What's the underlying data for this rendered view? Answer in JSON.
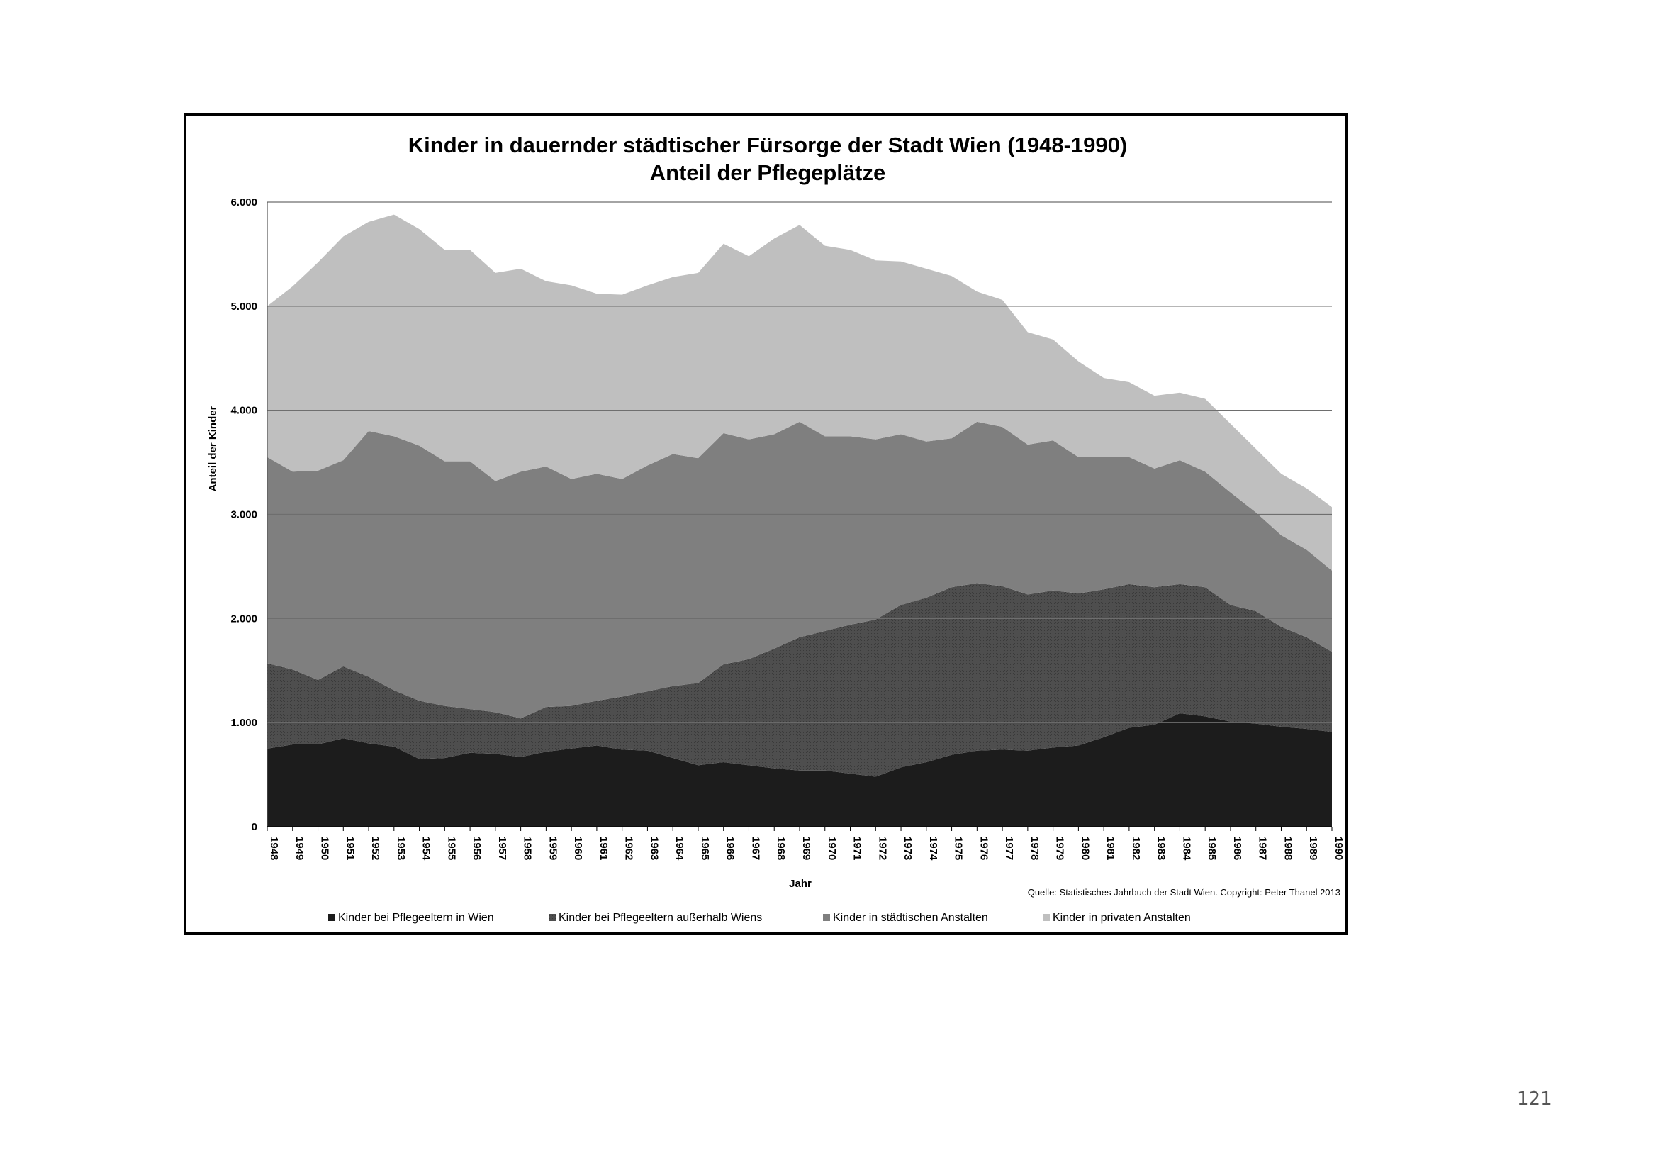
{
  "page_number": "121",
  "chart_data": {
    "type": "area",
    "stacked": true,
    "title": "Kinder in dauernder städtischer Fürsorge der Stadt Wien (1948-1990)",
    "subtitle": "Anteil der Pflegeplätze",
    "xlabel": "Jahr",
    "ylabel": "Anteil der Kinder",
    "source": "Quelle: Statistisches Jahrbuch der Stadt Wien. Copyright: Peter Thanel 2013",
    "ylim": [
      0,
      6000
    ],
    "yticks": [
      0,
      1000,
      2000,
      3000,
      4000,
      5000,
      6000
    ],
    "ytick_labels": [
      "0",
      "1.000",
      "2.000",
      "3.000",
      "4.000",
      "5.000",
      "6.000"
    ],
    "grid": true,
    "legend_position": "bottom",
    "categories": [
      "1948",
      "1949",
      "1950",
      "1951",
      "1952",
      "1953",
      "1954",
      "1955",
      "1956",
      "1957",
      "1958",
      "1959",
      "1960",
      "1961",
      "1962",
      "1963",
      "1964",
      "1965",
      "1966",
      "1967",
      "1968",
      "1969",
      "1970",
      "1971",
      "1972",
      "1973",
      "1974",
      "1975",
      "1976",
      "1977",
      "1978",
      "1979",
      "1980",
      "1981",
      "1982",
      "1983",
      "1984",
      "1985",
      "1986",
      "1987",
      "1988",
      "1989",
      "1990"
    ],
    "series": [
      {
        "name": "Kinder bei Pflegeeltern in Wien",
        "color": "#1c1c1c",
        "values": [
          750,
          790,
          790,
          850,
          800,
          770,
          650,
          660,
          710,
          700,
          670,
          720,
          750,
          780,
          740,
          730,
          660,
          590,
          620,
          590,
          560,
          540,
          540,
          510,
          480,
          570,
          620,
          690,
          730,
          740,
          730,
          760,
          780,
          860,
          950,
          980,
          1090,
          1060,
          1010,
          990,
          960,
          940,
          910
        ]
      },
      {
        "name": "Kinder bei Pflegeeltern außerhalb Wiens",
        "color": "#4e4e4e",
        "values": [
          820,
          720,
          620,
          690,
          640,
          540,
          560,
          500,
          420,
          400,
          370,
          430,
          410,
          430,
          510,
          570,
          690,
          790,
          940,
          1020,
          1150,
          1280,
          1340,
          1430,
          1510,
          1560,
          1580,
          1610,
          1610,
          1570,
          1500,
          1510,
          1460,
          1420,
          1380,
          1320,
          1240,
          1240,
          1120,
          1080,
          960,
          880,
          770
        ]
      },
      {
        "name": "Kinder in städtischen Anstalten",
        "color": "#7f7f7f",
        "values": [
          1980,
          1900,
          2010,
          1980,
          2360,
          2440,
          2450,
          2350,
          2380,
          2220,
          2370,
          2310,
          2180,
          2180,
          2090,
          2170,
          2230,
          2160,
          2220,
          2110,
          2060,
          2070,
          1870,
          1810,
          1730,
          1640,
          1500,
          1430,
          1550,
          1530,
          1440,
          1440,
          1310,
          1270,
          1220,
          1140,
          1190,
          1110,
          1080,
          950,
          880,
          840,
          780
        ]
      },
      {
        "name": "Kinder in privaten Anstalten",
        "color": "#bfbfbf",
        "values": [
          1450,
          1780,
          2000,
          2150,
          2010,
          2130,
          2080,
          2030,
          2030,
          2000,
          1950,
          1780,
          1860,
          1730,
          1770,
          1730,
          1700,
          1780,
          1820,
          1760,
          1880,
          1890,
          1830,
          1790,
          1720,
          1660,
          1660,
          1560,
          1250,
          1220,
          1080,
          970,
          920,
          760,
          720,
          700,
          650,
          700,
          660,
          610,
          590,
          590,
          610
        ]
      }
    ]
  }
}
